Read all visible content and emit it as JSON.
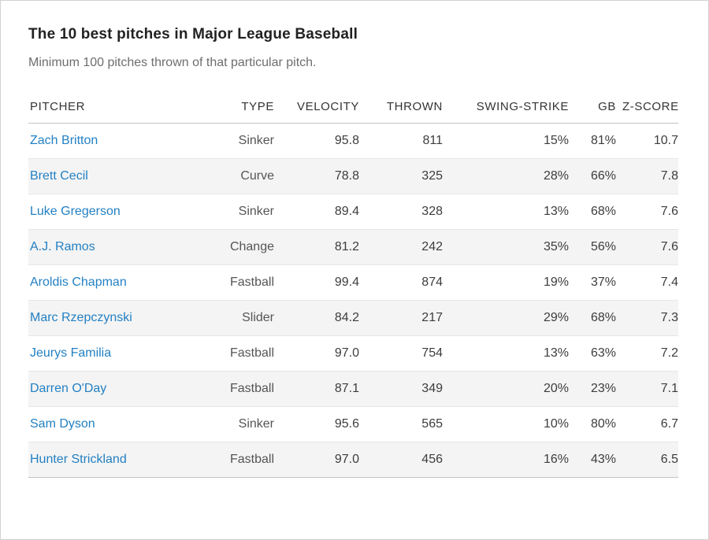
{
  "page": {
    "title": "The 10 best pitches in Major League Baseball",
    "subtitle": "Minimum 100 pitches thrown of that particular pitch."
  },
  "colors": {
    "link_blue": "#2380c3",
    "header_text": "#333333",
    "row_stripe": "#f4f4f4",
    "body_text": "#3d3d3d"
  },
  "chart_data": {
    "type": "table",
    "columns": [
      "PITCHER",
      "TYPE",
      "VELOCITY",
      "THROWN",
      "SWING-STRIKE",
      "GB",
      "Z-SCORE"
    ],
    "rows": [
      [
        "Zach Britton",
        "Sinker",
        "95.8",
        "811",
        "15%",
        "81%",
        "10.7"
      ],
      [
        "Brett Cecil",
        "Curve",
        "78.8",
        "325",
        "28%",
        "66%",
        "7.8"
      ],
      [
        "Luke Gregerson",
        "Sinker",
        "89.4",
        "328",
        "13%",
        "68%",
        "7.6"
      ],
      [
        "A.J. Ramos",
        "Change",
        "81.2",
        "242",
        "35%",
        "56%",
        "7.6"
      ],
      [
        "Aroldis Chapman",
        "Fastball",
        "99.4",
        "874",
        "19%",
        "37%",
        "7.4"
      ],
      [
        "Marc Rzepczynski",
        "Slider",
        "84.2",
        "217",
        "29%",
        "68%",
        "7.3"
      ],
      [
        "Jeurys Familia",
        "Fastball",
        "97.0",
        "754",
        "13%",
        "63%",
        "7.2"
      ],
      [
        "Darren O'Day",
        "Fastball",
        "87.1",
        "349",
        "20%",
        "23%",
        "7.1"
      ],
      [
        "Sam Dyson",
        "Sinker",
        "95.6",
        "565",
        "10%",
        "80%",
        "6.7"
      ],
      [
        "Hunter Strickland",
        "Fastball",
        "97.0",
        "456",
        "16%",
        "43%",
        "6.5"
      ]
    ]
  }
}
